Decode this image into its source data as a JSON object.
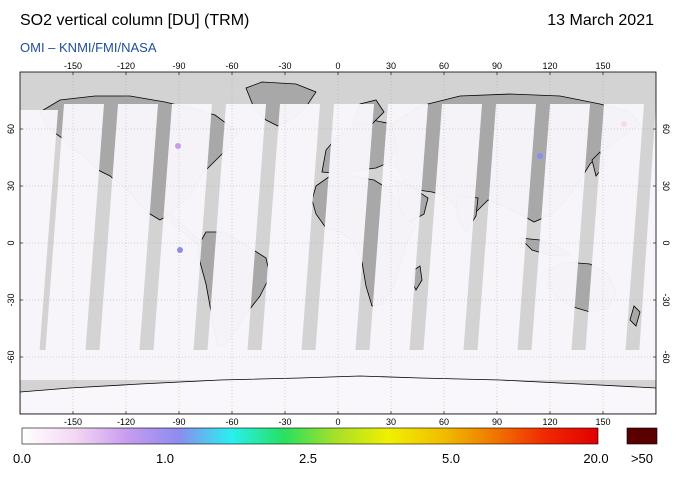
{
  "header": {
    "title": "SO2 vertical column [DU] (TRM)",
    "date": "13 March 2021",
    "credit": "OMI  –  KNMI/FMI/NASA"
  },
  "map": {
    "lon_ticks": [
      "-150",
      "-120",
      "-90",
      "-60",
      "-30",
      "0",
      "30",
      "60",
      "90",
      "120",
      "150"
    ],
    "lat_ticks": [
      "60",
      "30",
      "0",
      "-30",
      "-60"
    ],
    "colors": {
      "no_data": "#d3d3d3",
      "land_no_data": "#a8a8a8",
      "low_value": "#faf7fc",
      "coastline": "#000000"
    }
  },
  "colorbar": {
    "labels": [
      "0.0",
      "1.0",
      "2.5",
      "5.0",
      "20.0"
    ],
    "max_label": ">50",
    "max_color": "#5a0000",
    "stops": [
      "#ffffff",
      "#f4d8f4",
      "#c89cf0",
      "#8c8cf0",
      "#28f0f0",
      "#28e060",
      "#a8e028",
      "#f0f000",
      "#f0c000",
      "#f07800",
      "#f02800",
      "#e00000"
    ]
  }
}
